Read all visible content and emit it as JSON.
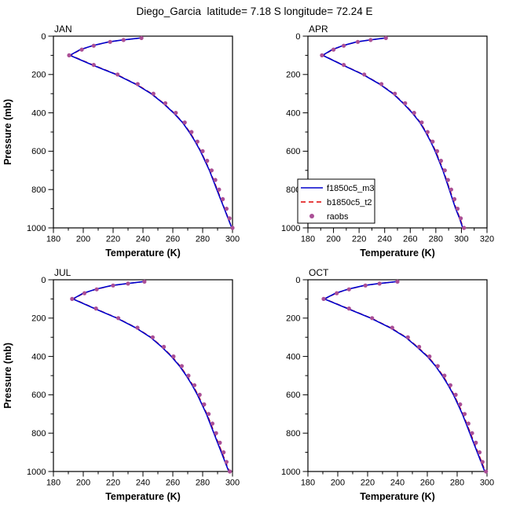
{
  "title": "Diego_Garcia  latitude= 7.18 S longitude= 72.24 E",
  "xlabel": "Temperature (K)",
  "ylabel": "Pressure (mb)",
  "legend": {
    "entries": [
      {
        "label": "f1850c5_m3",
        "color": "#0000cc",
        "style": "solid"
      },
      {
        "label": "b1850c5_t2",
        "color": "#dd0000",
        "style": "dashed"
      },
      {
        "label": "raobs",
        "color": "#aa4f96",
        "style": "dot"
      }
    ]
  },
  "chart_data": [
    {
      "type": "line",
      "title": "JAN",
      "xlabel": "Temperature (K)",
      "ylabel": "Pressure (mb)",
      "xlim": [
        180,
        300
      ],
      "xticks": [
        180,
        200,
        220,
        240,
        260,
        280,
        300
      ],
      "ylim": [
        0,
        1000
      ],
      "yticks": [
        0,
        200,
        400,
        600,
        800,
        1000
      ],
      "y_inverted": true,
      "show_legend": false,
      "pressure_mb": [
        10,
        20,
        30,
        50,
        70,
        100,
        150,
        200,
        250,
        300,
        350,
        400,
        450,
        500,
        550,
        600,
        650,
        700,
        750,
        800,
        850,
        900,
        950,
        1000
      ],
      "series": [
        {
          "name": "f1850c5_m3",
          "values": [
            238.0,
            226.0,
            217.0,
            206.0,
            198.0,
            191.0,
            206.0,
            222.0,
            235.0,
            245.5,
            253.5,
            260.5,
            266.5,
            271.0,
            275.0,
            278.5,
            281.5,
            284.5,
            287.0,
            289.5,
            292.0,
            294.5,
            297.0,
            299.5
          ]
        },
        {
          "name": "b1850c5_t2",
          "values": [
            238.5,
            226.4,
            217.3,
            206.3,
            198.4,
            191.4,
            206.5,
            222.4,
            235.4,
            245.9,
            253.8,
            260.8,
            266.8,
            271.3,
            275.3,
            278.8,
            281.8,
            284.8,
            287.3,
            289.8,
            292.3,
            294.7,
            297.2,
            299.6
          ]
        },
        {
          "name": "raobs",
          "values": [
            239.0,
            227.0,
            218.0,
            207.0,
            199.0,
            190.5,
            207.0,
            223.0,
            236.5,
            247.0,
            255.0,
            262.0,
            268.0,
            272.5,
            276.5,
            280.0,
            283.0,
            286.0,
            288.5,
            291.0,
            293.5,
            296.0,
            298.0,
            300.0
          ]
        }
      ]
    },
    {
      "type": "line",
      "title": "APR",
      "xlabel": "Temperature (K)",
      "ylabel": "Pressure (mb)",
      "xlim": [
        180,
        320
      ],
      "xticks": [
        180,
        200,
        220,
        240,
        260,
        280,
        300,
        320
      ],
      "ylim": [
        0,
        1000
      ],
      "yticks": [
        0,
        200,
        400,
        600,
        800,
        1000
      ],
      "y_inverted": true,
      "show_legend": true,
      "pressure_mb": [
        10,
        20,
        30,
        50,
        70,
        100,
        150,
        200,
        250,
        300,
        350,
        400,
        450,
        500,
        550,
        600,
        650,
        700,
        750,
        800,
        850,
        900,
        950,
        1000
      ],
      "series": [
        {
          "name": "f1850c5_m3",
          "values": [
            240.0,
            228.0,
            218.0,
            207.0,
            199.0,
            191.5,
            207.0,
            223.0,
            236.0,
            246.5,
            254.5,
            261.5,
            267.5,
            272.0,
            276.0,
            279.5,
            282.5,
            285.5,
            288.0,
            290.5,
            293.0,
            295.5,
            298.5,
            301.0
          ]
        },
        {
          "name": "b1850c5_t2",
          "values": [
            240.4,
            228.4,
            218.4,
            207.4,
            199.4,
            191.9,
            207.4,
            223.4,
            236.4,
            246.9,
            254.9,
            261.9,
            267.9,
            272.4,
            276.4,
            279.9,
            282.9,
            285.9,
            288.4,
            290.9,
            293.4,
            295.9,
            298.9,
            301.4
          ]
        },
        {
          "name": "raobs",
          "values": [
            241.0,
            229.0,
            219.0,
            208.0,
            200.0,
            191.0,
            208.0,
            224.0,
            237.5,
            248.0,
            256.0,
            263.0,
            269.0,
            273.5,
            277.5,
            281.0,
            284.0,
            287.0,
            289.5,
            292.0,
            294.5,
            297.0,
            299.5,
            302.0
          ]
        }
      ]
    },
    {
      "type": "line",
      "title": "JUL",
      "xlabel": "Temperature (K)",
      "ylabel": "Pressure (mb)",
      "xlim": [
        180,
        300
      ],
      "xticks": [
        180,
        200,
        220,
        240,
        260,
        280,
        300
      ],
      "ylim": [
        0,
        1000
      ],
      "yticks": [
        0,
        200,
        400,
        600,
        800,
        1000
      ],
      "y_inverted": true,
      "show_legend": false,
      "pressure_mb": [
        10,
        20,
        30,
        50,
        70,
        100,
        150,
        200,
        250,
        300,
        350,
        400,
        450,
        500,
        550,
        600,
        650,
        700,
        750,
        800,
        850,
        900,
        950,
        1000
      ],
      "series": [
        {
          "name": "f1850c5_m3",
          "values": [
            240.0,
            229.0,
            219.0,
            208.0,
            200.0,
            193.0,
            207.5,
            222.5,
            235.0,
            245.0,
            252.5,
            259.0,
            264.5,
            269.0,
            273.0,
            276.5,
            279.5,
            282.5,
            285.0,
            287.5,
            290.0,
            292.5,
            295.0,
            297.5
          ]
        },
        {
          "name": "b1850c5_t2",
          "values": [
            240.4,
            229.4,
            219.4,
            208.4,
            200.4,
            193.4,
            207.9,
            222.9,
            235.4,
            245.4,
            252.9,
            259.4,
            264.9,
            269.4,
            273.4,
            276.9,
            279.9,
            282.9,
            285.4,
            287.9,
            290.4,
            292.9,
            295.4,
            297.9
          ]
        },
        {
          "name": "raobs",
          "values": [
            241.0,
            230.0,
            220.0,
            209.0,
            200.8,
            192.5,
            208.5,
            223.5,
            236.3,
            246.5,
            254.0,
            260.5,
            266.0,
            270.5,
            274.5,
            278.0,
            281.0,
            284.0,
            286.5,
            289.0,
            291.5,
            294.0,
            296.0,
            298.2
          ]
        }
      ]
    },
    {
      "type": "line",
      "title": "OCT",
      "xlabel": "Temperature (K)",
      "ylabel": "Pressure (mb)",
      "xlim": [
        180,
        300
      ],
      "xticks": [
        180,
        200,
        220,
        240,
        260,
        280,
        300
      ],
      "ylim": [
        0,
        1000
      ],
      "yticks": [
        0,
        200,
        400,
        600,
        800,
        1000
      ],
      "y_inverted": true,
      "show_legend": false,
      "pressure_mb": [
        10,
        20,
        30,
        50,
        70,
        100,
        150,
        200,
        250,
        300,
        350,
        400,
        450,
        500,
        550,
        600,
        650,
        700,
        750,
        800,
        850,
        900,
        950,
        1000
      ],
      "series": [
        {
          "name": "f1850c5_m3",
          "values": [
            239.0,
            227.0,
            217.5,
            206.5,
            198.5,
            191.0,
            206.5,
            222.0,
            235.0,
            245.5,
            253.0,
            260.0,
            265.5,
            270.0,
            274.0,
            277.5,
            280.5,
            283.5,
            286.0,
            288.5,
            291.0,
            293.5,
            296.0,
            298.5
          ]
        },
        {
          "name": "b1850c5_t2",
          "values": [
            239.4,
            227.4,
            217.9,
            206.9,
            198.9,
            191.4,
            206.9,
            222.4,
            235.4,
            245.9,
            253.4,
            260.4,
            265.9,
            270.4,
            274.4,
            277.9,
            280.9,
            283.9,
            286.4,
            288.9,
            291.4,
            293.9,
            296.4,
            298.9
          ]
        },
        {
          "name": "raobs",
          "values": [
            240.0,
            228.0,
            218.5,
            207.5,
            199.3,
            190.5,
            207.5,
            223.0,
            236.5,
            247.0,
            254.5,
            261.5,
            267.0,
            271.5,
            275.5,
            279.0,
            282.0,
            285.0,
            287.5,
            290.0,
            292.5,
            295.0,
            297.0,
            299.3
          ]
        }
      ]
    }
  ]
}
